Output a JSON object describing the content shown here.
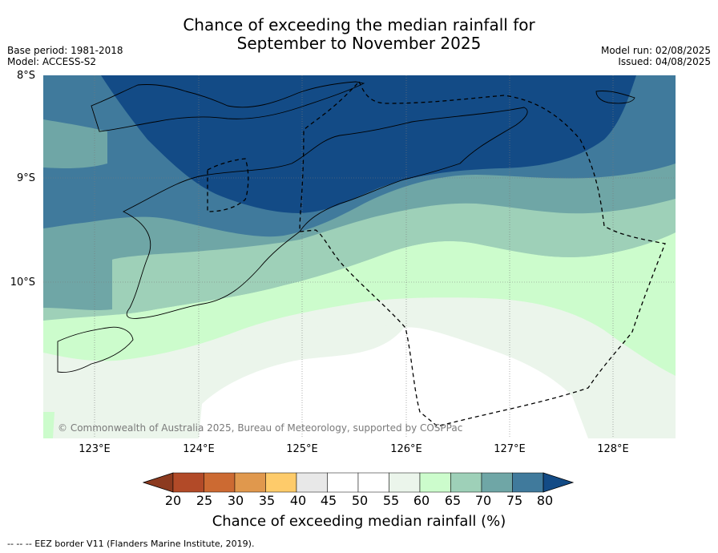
{
  "title_line1": "Chance of exceeding the median rainfall for",
  "title_line2": "September to November 2025",
  "base_period": "Base period: 1981-2018",
  "model": "Model: ACCESS-S2",
  "model_run": "Model run: 02/08/2025",
  "issued": "Issued: 04/08/2025",
  "lat_labels": [
    "8°S",
    "9°S",
    "10°S"
  ],
  "lon_labels": [
    "123°E",
    "124°E",
    "125°E",
    "126°E",
    "127°E",
    "128°E"
  ],
  "copyright": "© Commonwealth of Australia 2025, Bureau of Meteorology, supported by COSPPac",
  "colorbar": {
    "title": "Chance of exceeding median rainfall (%)",
    "ticks": [
      "20",
      "25",
      "30",
      "35",
      "40",
      "45",
      "50",
      "55",
      "60",
      "65",
      "70",
      "75",
      "80"
    ],
    "colors": [
      "#8c3a1f",
      "#b24a28",
      "#cc6a32",
      "#e0984d",
      "#fecb6a",
      "#e8e8e8",
      "#ffffff",
      "#ffffff",
      "#ebf5eb",
      "#ccfccc",
      "#9ed0b8",
      "#6fa6a6",
      "#407a9c",
      "#134b86"
    ]
  },
  "footer": "--  --  -- EEZ border V11 (Flanders Marine Institute, 2019)."
}
